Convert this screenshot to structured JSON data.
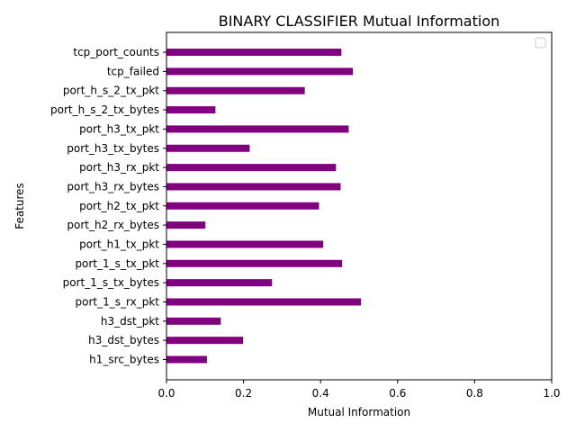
{
  "chart_data": {
    "type": "bar",
    "orientation": "horizontal",
    "title": "BINARY CLASSIFIER Mutual Information",
    "xlabel": "Mutual Information",
    "ylabel": "Features",
    "xlim": [
      0,
      1
    ],
    "xticks": [
      "0.0",
      "0.2",
      "0.4",
      "0.6",
      "0.8",
      "1.0"
    ],
    "grid": false,
    "legend": "top-right (empty)",
    "bar_color": "#800080",
    "categories": [
      "h1_src_bytes",
      "h3_dst_bytes",
      "h3_dst_pkt",
      "port_1_s_rx_pkt",
      "port_1_s_tx_bytes",
      "port_1_s_tx_pkt",
      "port_h1_tx_pkt",
      "port_h2_rx_bytes",
      "port_h2_tx_pkt",
      "port_h3_rx_bytes",
      "port_h3_rx_pkt",
      "port_h3_tx_bytes",
      "port_h3_tx_pkt",
      "port_h_s_2_tx_bytes",
      "port_h_s_2_tx_pkt",
      "tcp_failed",
      "tcp_port_counts"
    ],
    "values": [
      0.105,
      0.199,
      0.141,
      0.505,
      0.274,
      0.456,
      0.407,
      0.101,
      0.396,
      0.452,
      0.44,
      0.216,
      0.473,
      0.127,
      0.359,
      0.484,
      0.454
    ]
  }
}
